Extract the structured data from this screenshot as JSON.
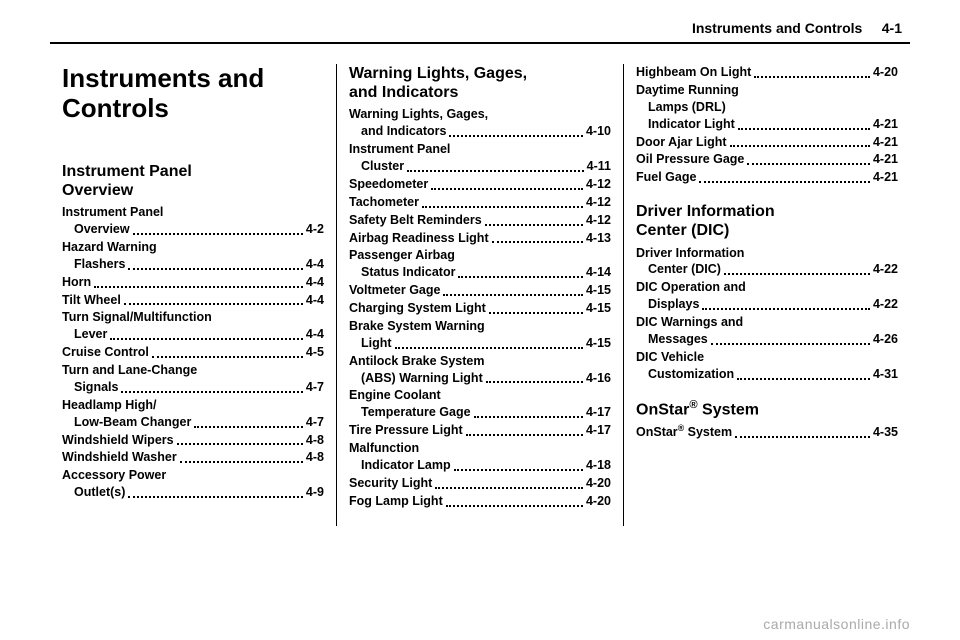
{
  "header": {
    "left": "Instruments and Controls",
    "pageref": "4-1"
  },
  "title": "Instruments and\nControls",
  "watermark": "carmanualsonline.info",
  "sections": [
    {
      "heading": "Instrument Panel\nOverview",
      "col": 0,
      "entries": [
        {
          "label": "Instrument Panel\nOverview",
          "page": "4-2"
        },
        {
          "label": "Hazard Warning\nFlashers",
          "page": "4-4"
        },
        {
          "label": "Horn",
          "page": "4-4"
        },
        {
          "label": "Tilt Wheel",
          "page": "4-4"
        },
        {
          "label": "Turn Signal/Multifunction\nLever",
          "page": "4-4"
        },
        {
          "label": "Cruise Control",
          "page": "4-5"
        },
        {
          "label": "Turn and Lane-Change\nSignals",
          "page": "4-7"
        },
        {
          "label": "Headlamp High/\nLow-Beam Changer",
          "page": "4-7"
        },
        {
          "label": "Windshield Wipers",
          "page": "4-8"
        },
        {
          "label": "Windshield Washer",
          "page": "4-8"
        },
        {
          "label": "Accessory Power\nOutlet(s)",
          "page": "4-9"
        }
      ]
    },
    {
      "heading": "Warning Lights, Gages,\nand Indicators",
      "col": 1,
      "entries": [
        {
          "label": "Warning Lights, Gages,\nand Indicators",
          "page": "4-10"
        },
        {
          "label": "Instrument Panel\nCluster",
          "page": "4-11"
        },
        {
          "label": "Speedometer",
          "page": "4-12"
        },
        {
          "label": "Tachometer",
          "page": "4-12"
        },
        {
          "label": "Safety Belt Reminders",
          "page": "4-12"
        },
        {
          "label": "Airbag Readiness Light",
          "page": "4-13"
        },
        {
          "label": "Passenger Airbag\nStatus Indicator",
          "page": "4-14"
        },
        {
          "label": "Voltmeter Gage",
          "page": "4-15"
        },
        {
          "label": "Charging System Light",
          "page": "4-15"
        },
        {
          "label": "Brake System Warning\nLight",
          "page": "4-15"
        },
        {
          "label": "Antilock Brake System\n(ABS) Warning Light",
          "page": "4-16"
        },
        {
          "label": "Engine Coolant\nTemperature Gage",
          "page": "4-17"
        },
        {
          "label": "Tire Pressure Light",
          "page": "4-17"
        },
        {
          "label": "Malfunction\nIndicator Lamp",
          "page": "4-18"
        },
        {
          "label": "Security Light",
          "page": "4-20"
        },
        {
          "label": "Fog Lamp Light",
          "page": "4-20"
        }
      ]
    },
    {
      "heading": null,
      "col": 2,
      "entries": [
        {
          "label": "Highbeam On Light",
          "page": "4-20"
        },
        {
          "label": "Daytime Running\nLamps (DRL)\nIndicator Light",
          "page": "4-21"
        },
        {
          "label": "Door Ajar Light",
          "page": "4-21"
        },
        {
          "label": "Oil Pressure Gage",
          "page": "4-21"
        },
        {
          "label": "Fuel Gage",
          "page": "4-21"
        }
      ]
    },
    {
      "heading": "Driver Information\nCenter (DIC)",
      "col": 2,
      "entries": [
        {
          "label": "Driver Information\nCenter (DIC)",
          "page": "4-22"
        },
        {
          "label": "DIC Operation and\nDisplays",
          "page": "4-22"
        },
        {
          "label": "DIC Warnings and\nMessages",
          "page": "4-26"
        },
        {
          "label": "DIC Vehicle\nCustomization",
          "page": "4-31"
        }
      ]
    },
    {
      "heading": "OnStar® System",
      "col": 2,
      "entries": [
        {
          "label": "OnStar® System",
          "page": "4-35"
        }
      ]
    }
  ]
}
